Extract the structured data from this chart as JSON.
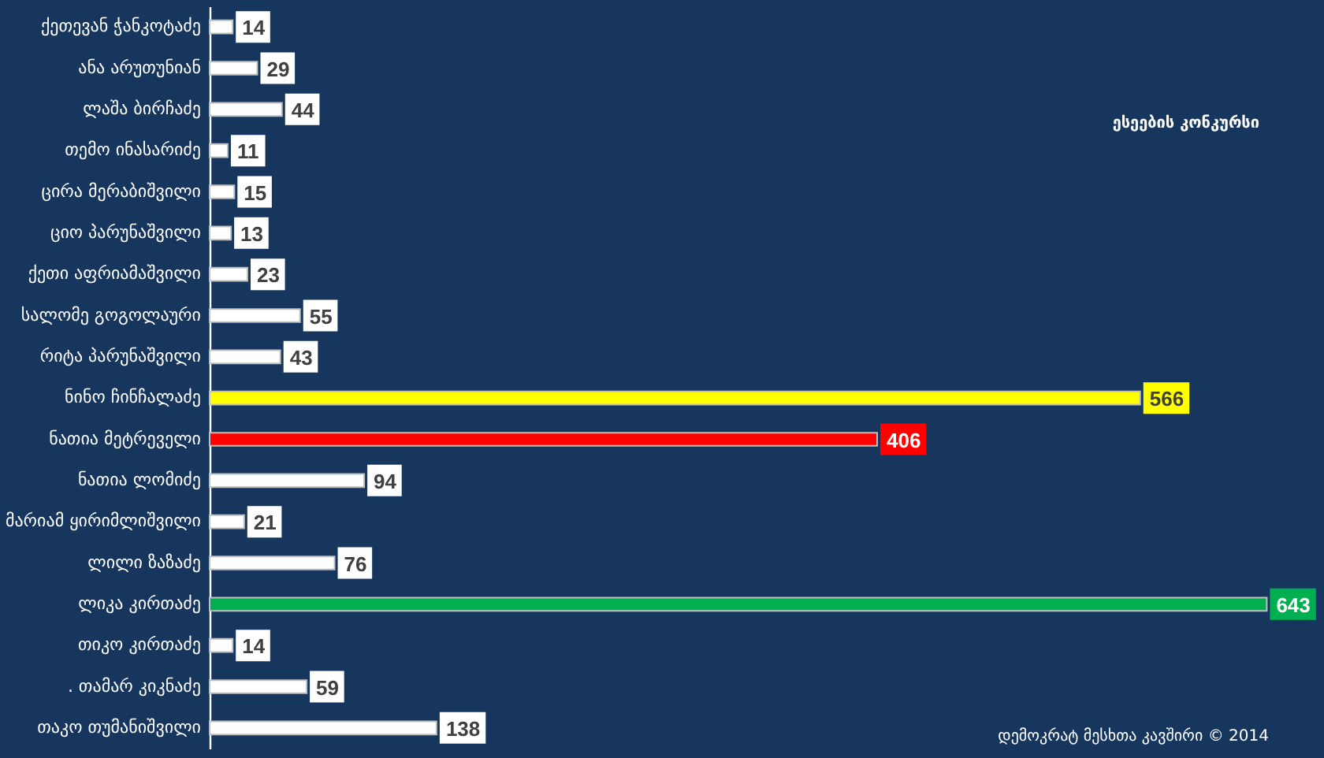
{
  "chart_data": {
    "type": "bar",
    "orientation": "horizontal",
    "categories": [
      "ქეთევან ჭანკოტაძე",
      "ანა არუთუნიან",
      "ლაშა ბირჩაძე",
      "თემო ინასარიძე",
      "ცირა მერაბიშვილი",
      "ციო პარუნაშვილი",
      "ქეთი აფრიამაშვილი",
      "სალომე გოგოლაური",
      "რიტა პარუნაშვილი",
      "ნინო ჩინჩალაძე",
      "ნათია მეტრეველი",
      "ნათია ლომიძე",
      "მარიამ ყირიმლიშვილი",
      "ლილი ზაზაძე",
      "ლიკა კირთაძე",
      "თიკო კირთაძე",
      ". თამარ კიკნაძე",
      "თაკო თუმანიშვილი"
    ],
    "values": [
      14,
      29,
      44,
      11,
      15,
      13,
      23,
      55,
      43,
      566,
      406,
      94,
      21,
      76,
      643,
      14,
      59,
      138
    ],
    "colors": [
      "#ffffff",
      "#ffffff",
      "#ffffff",
      "#ffffff",
      "#ffffff",
      "#ffffff",
      "#ffffff",
      "#ffffff",
      "#ffffff",
      "#ffff00",
      "#ff0000",
      "#ffffff",
      "#ffffff",
      "#ffffff",
      "#00b050",
      "#ffffff",
      "#ffffff",
      "#ffffff"
    ],
    "data_labels": true,
    "tick_labels": "y",
    "annotations": [
      "ესეების კონკურსი",
      "დემოკრატ მესხთა კავშირი © 2014"
    ]
  }
}
